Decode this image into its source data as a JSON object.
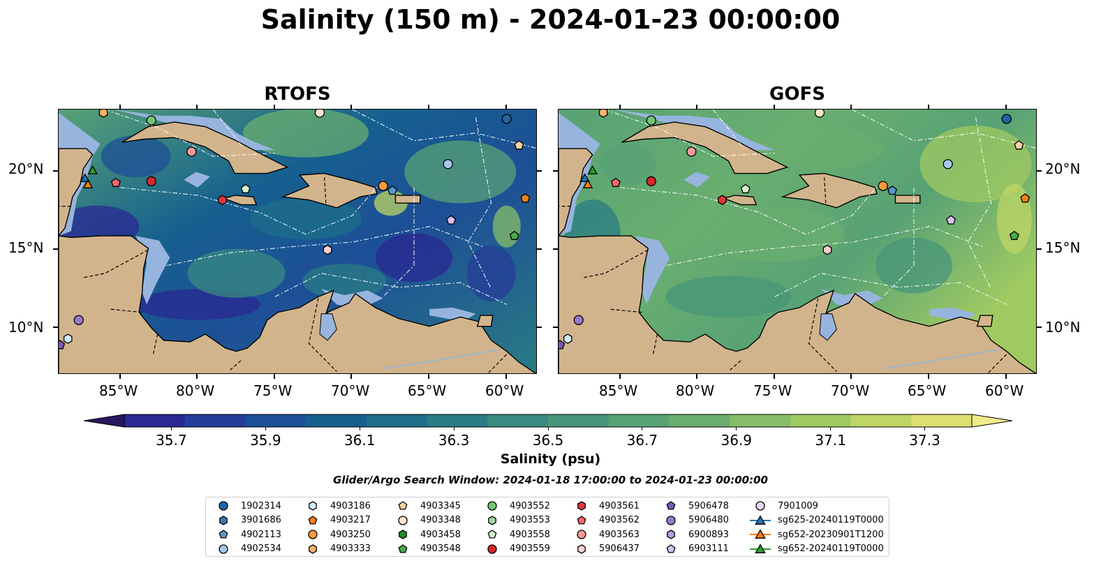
{
  "title": "Salinity (150 m) - 2024-01-23 00:00:00",
  "panels": [
    {
      "title": "RTOFS",
      "field": "rtofs"
    },
    {
      "title": "GOFS",
      "field": "gofs"
    }
  ],
  "lon_labels": [
    "85°W",
    "80°W",
    "75°W",
    "70°W",
    "65°W",
    "60°W"
  ],
  "lat_labels": [
    "20°N",
    "15°N",
    "10°N"
  ],
  "colorbar": {
    "label": "Salinity (psu)",
    "ticks": [
      "35.7",
      "35.9",
      "36.1",
      "36.3",
      "36.5",
      "36.7",
      "36.9",
      "37.1",
      "37.3"
    ],
    "range": [
      35.6,
      37.4
    ],
    "colors": [
      "#27175f",
      "#2a2891",
      "#253c98",
      "#1d4f96",
      "#16608f",
      "#1d6e89",
      "#2a7c84",
      "#398a80",
      "#489679",
      "#57a275",
      "#6aae6f",
      "#85bd68",
      "#9fca62",
      "#bdd564",
      "#dddf72",
      "#f3ea89"
    ]
  },
  "colormap": "haline",
  "search_window": "Glider/Argo Search Window: 2024-01-18 17:00:00 to 2024-01-23 00:00:00",
  "legend": [
    {
      "label": "1902314",
      "marker": "circle",
      "color": "#1f66a6"
    },
    {
      "label": "3901686",
      "marker": "hexagon",
      "color": "#3d78b4"
    },
    {
      "label": "4902113",
      "marker": "pentagon",
      "color": "#5a96cc"
    },
    {
      "label": "4902534",
      "marker": "circle",
      "color": "#a6c8ea"
    },
    {
      "label": "4903186",
      "marker": "hexagon",
      "color": "#d4ecfb"
    },
    {
      "label": "4903217",
      "marker": "pentagon",
      "color": "#f07f1e"
    },
    {
      "label": "4903250",
      "marker": "circle",
      "color": "#fd9a3a"
    },
    {
      "label": "4903333",
      "marker": "hexagon",
      "color": "#fdb26b"
    },
    {
      "label": "4903345",
      "marker": "pentagon",
      "color": "#fdd0a2"
    },
    {
      "label": "4903348",
      "marker": "circle",
      "color": "#fde3c8"
    },
    {
      "label": "4903458",
      "marker": "hexagon",
      "color": "#238b2a"
    },
    {
      "label": "4903548",
      "marker": "pentagon",
      "color": "#4aaa48"
    },
    {
      "label": "4903552",
      "marker": "circle",
      "color": "#74c476"
    },
    {
      "label": "4903553",
      "marker": "hexagon",
      "color": "#a1d99b"
    },
    {
      "label": "4903558",
      "marker": "pentagon",
      "color": "#d4f1cc"
    },
    {
      "label": "4903559",
      "marker": "circle",
      "color": "#d62728"
    },
    {
      "label": "4903561",
      "marker": "hexagon",
      "color": "#e0363a"
    },
    {
      "label": "4903562",
      "marker": "pentagon",
      "color": "#f4686a"
    },
    {
      "label": "4903563",
      "marker": "circle",
      "color": "#f79a9a"
    },
    {
      "label": "5906437",
      "marker": "hexagon",
      "color": "#fbd2d2"
    },
    {
      "label": "5906478",
      "marker": "pentagon",
      "color": "#7b59b5"
    },
    {
      "label": "5906480",
      "marker": "circle",
      "color": "#9a78cb"
    },
    {
      "label": "6900893",
      "marker": "hexagon",
      "color": "#b89ce0"
    },
    {
      "label": "6903111",
      "marker": "pentagon",
      "color": "#d6c2f2"
    },
    {
      "label": "7901009",
      "marker": "circle",
      "color": "#e8d8fb"
    },
    {
      "label": "sg625-20240119T0000",
      "marker": "triangle-line",
      "color": "#1f77b4"
    },
    {
      "label": "sg652-20230901T1200",
      "marker": "triangle-line",
      "color": "#ff7f0e"
    },
    {
      "label": "sg652-20240119T0000",
      "marker": "triangle-line",
      "color": "#2ca02c"
    }
  ],
  "map_extent": {
    "lon": [
      -89,
      -58
    ],
    "lat": [
      7,
      24
    ]
  },
  "floats": [
    {
      "id": "1902314",
      "lon": -60.0,
      "lat": 23.4
    },
    {
      "id": "4903345",
      "lon": -59.2,
      "lat": 21.7
    },
    {
      "id": "4902534",
      "lon": -63.8,
      "lat": 20.5
    },
    {
      "id": "4903217",
      "lon": -58.8,
      "lat": 18.3
    },
    {
      "id": "4903548",
      "lon": -59.5,
      "lat": 15.9
    },
    {
      "id": "6903111",
      "lon": -63.6,
      "lat": 16.9
    },
    {
      "id": "5906437",
      "lon": -71.6,
      "lat": 15.0
    },
    {
      "id": "4903250",
      "lon": -68.0,
      "lat": 19.1
    },
    {
      "id": "4902113",
      "lon": -67.4,
      "lat": 18.8
    },
    {
      "id": "4903558",
      "lon": -76.9,
      "lat": 18.9
    },
    {
      "id": "4903561",
      "lon": -78.4,
      "lat": 18.2
    },
    {
      "id": "4903559",
      "lon": -83.0,
      "lat": 19.4
    },
    {
      "id": "4903562",
      "lon": -85.3,
      "lat": 19.3
    },
    {
      "id": "4903563",
      "lon": -80.4,
      "lat": 21.3
    },
    {
      "id": "4903552",
      "lon": -83.0,
      "lat": 23.3
    },
    {
      "id": "4903348",
      "lon": -72.1,
      "lat": 23.8
    },
    {
      "id": "4903333",
      "lon": -86.1,
      "lat": 23.8
    },
    {
      "id": "5906480",
      "lon": -87.7,
      "lat": 10.5
    },
    {
      "id": "4903186",
      "lon": -88.4,
      "lat": 9.3
    },
    {
      "id": "5906478",
      "lon": -88.9,
      "lat": 8.9
    },
    {
      "id": "sg625-20240119T0000",
      "lon": -87.3,
      "lat": 19.6
    },
    {
      "id": "sg652-20230901T1200",
      "lon": -87.1,
      "lat": 19.2
    },
    {
      "id": "sg652-20240119T0000",
      "lon": -86.8,
      "lat": 20.1
    }
  ]
}
